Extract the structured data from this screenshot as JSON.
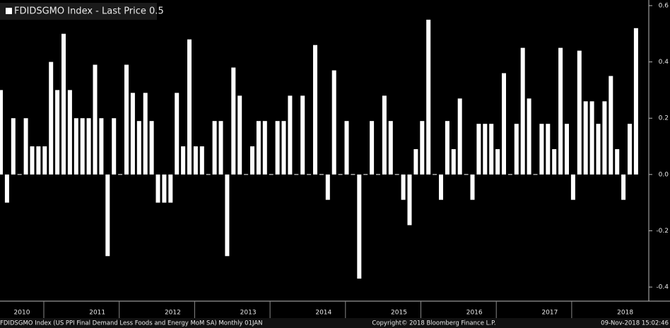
{
  "chart_data": {
    "type": "bar",
    "title": "FDIDSGMO Index - Last Price 0.5",
    "color": "#ffffff",
    "values": [
      0.3,
      -0.1,
      0.2,
      0.0,
      0.2,
      0.1,
      0.1,
      0.1,
      0.4,
      0.3,
      0.5,
      0.3,
      0.2,
      0.2,
      0.2,
      0.39,
      0.2,
      -0.29,
      0.2,
      0.0,
      0.39,
      0.29,
      0.19,
      0.29,
      0.19,
      -0.1,
      -0.1,
      -0.1,
      0.29,
      0.1,
      0.48,
      0.1,
      0.1,
      0.0,
      0.19,
      0.19,
      -0.29,
      0.38,
      0.28,
      0.0,
      0.1,
      0.19,
      0.19,
      0.0,
      0.19,
      0.19,
      0.28,
      0.0,
      0.28,
      0.0,
      0.46,
      0.0,
      -0.09,
      0.37,
      0.0,
      0.19,
      0.0,
      -0.37,
      0.0,
      0.19,
      0.0,
      0.28,
      0.19,
      0.0,
      -0.09,
      -0.18,
      0.09,
      0.19,
      0.55,
      0.0,
      -0.09,
      0.19,
      0.09,
      0.27,
      0.0,
      -0.09,
      0.18,
      0.18,
      0.18,
      0.09,
      0.36,
      0.0,
      0.18,
      0.45,
      0.27,
      0.0,
      0.18,
      0.18,
      0.09,
      0.45,
      0.18,
      -0.09,
      0.44,
      0.26,
      0.26,
      0.18,
      0.26,
      0.35,
      0.09,
      -0.09,
      0.18,
      0.52
    ],
    "x_labels": [
      "2010",
      "2011",
      "2012",
      "2013",
      "2014",
      "2015",
      "2016",
      "2017",
      "2018"
    ],
    "ylim": [
      -0.45,
      0.62
    ],
    "yticks": [
      0.6,
      0.4,
      0.2,
      {
        "value": 0,
        "label": "0.0"
      },
      -0.2,
      -0.4
    ],
    "footer": {
      "description": "FDIDSGMO Index (US PPI Final Demand Less Foods and Energy MoM SA)  Monthly 01JAN",
      "copyright": "Copyright© 2018 Bloomberg Finance L.P.",
      "timestamp": "09-Nov-2018 15:02:46"
    }
  }
}
